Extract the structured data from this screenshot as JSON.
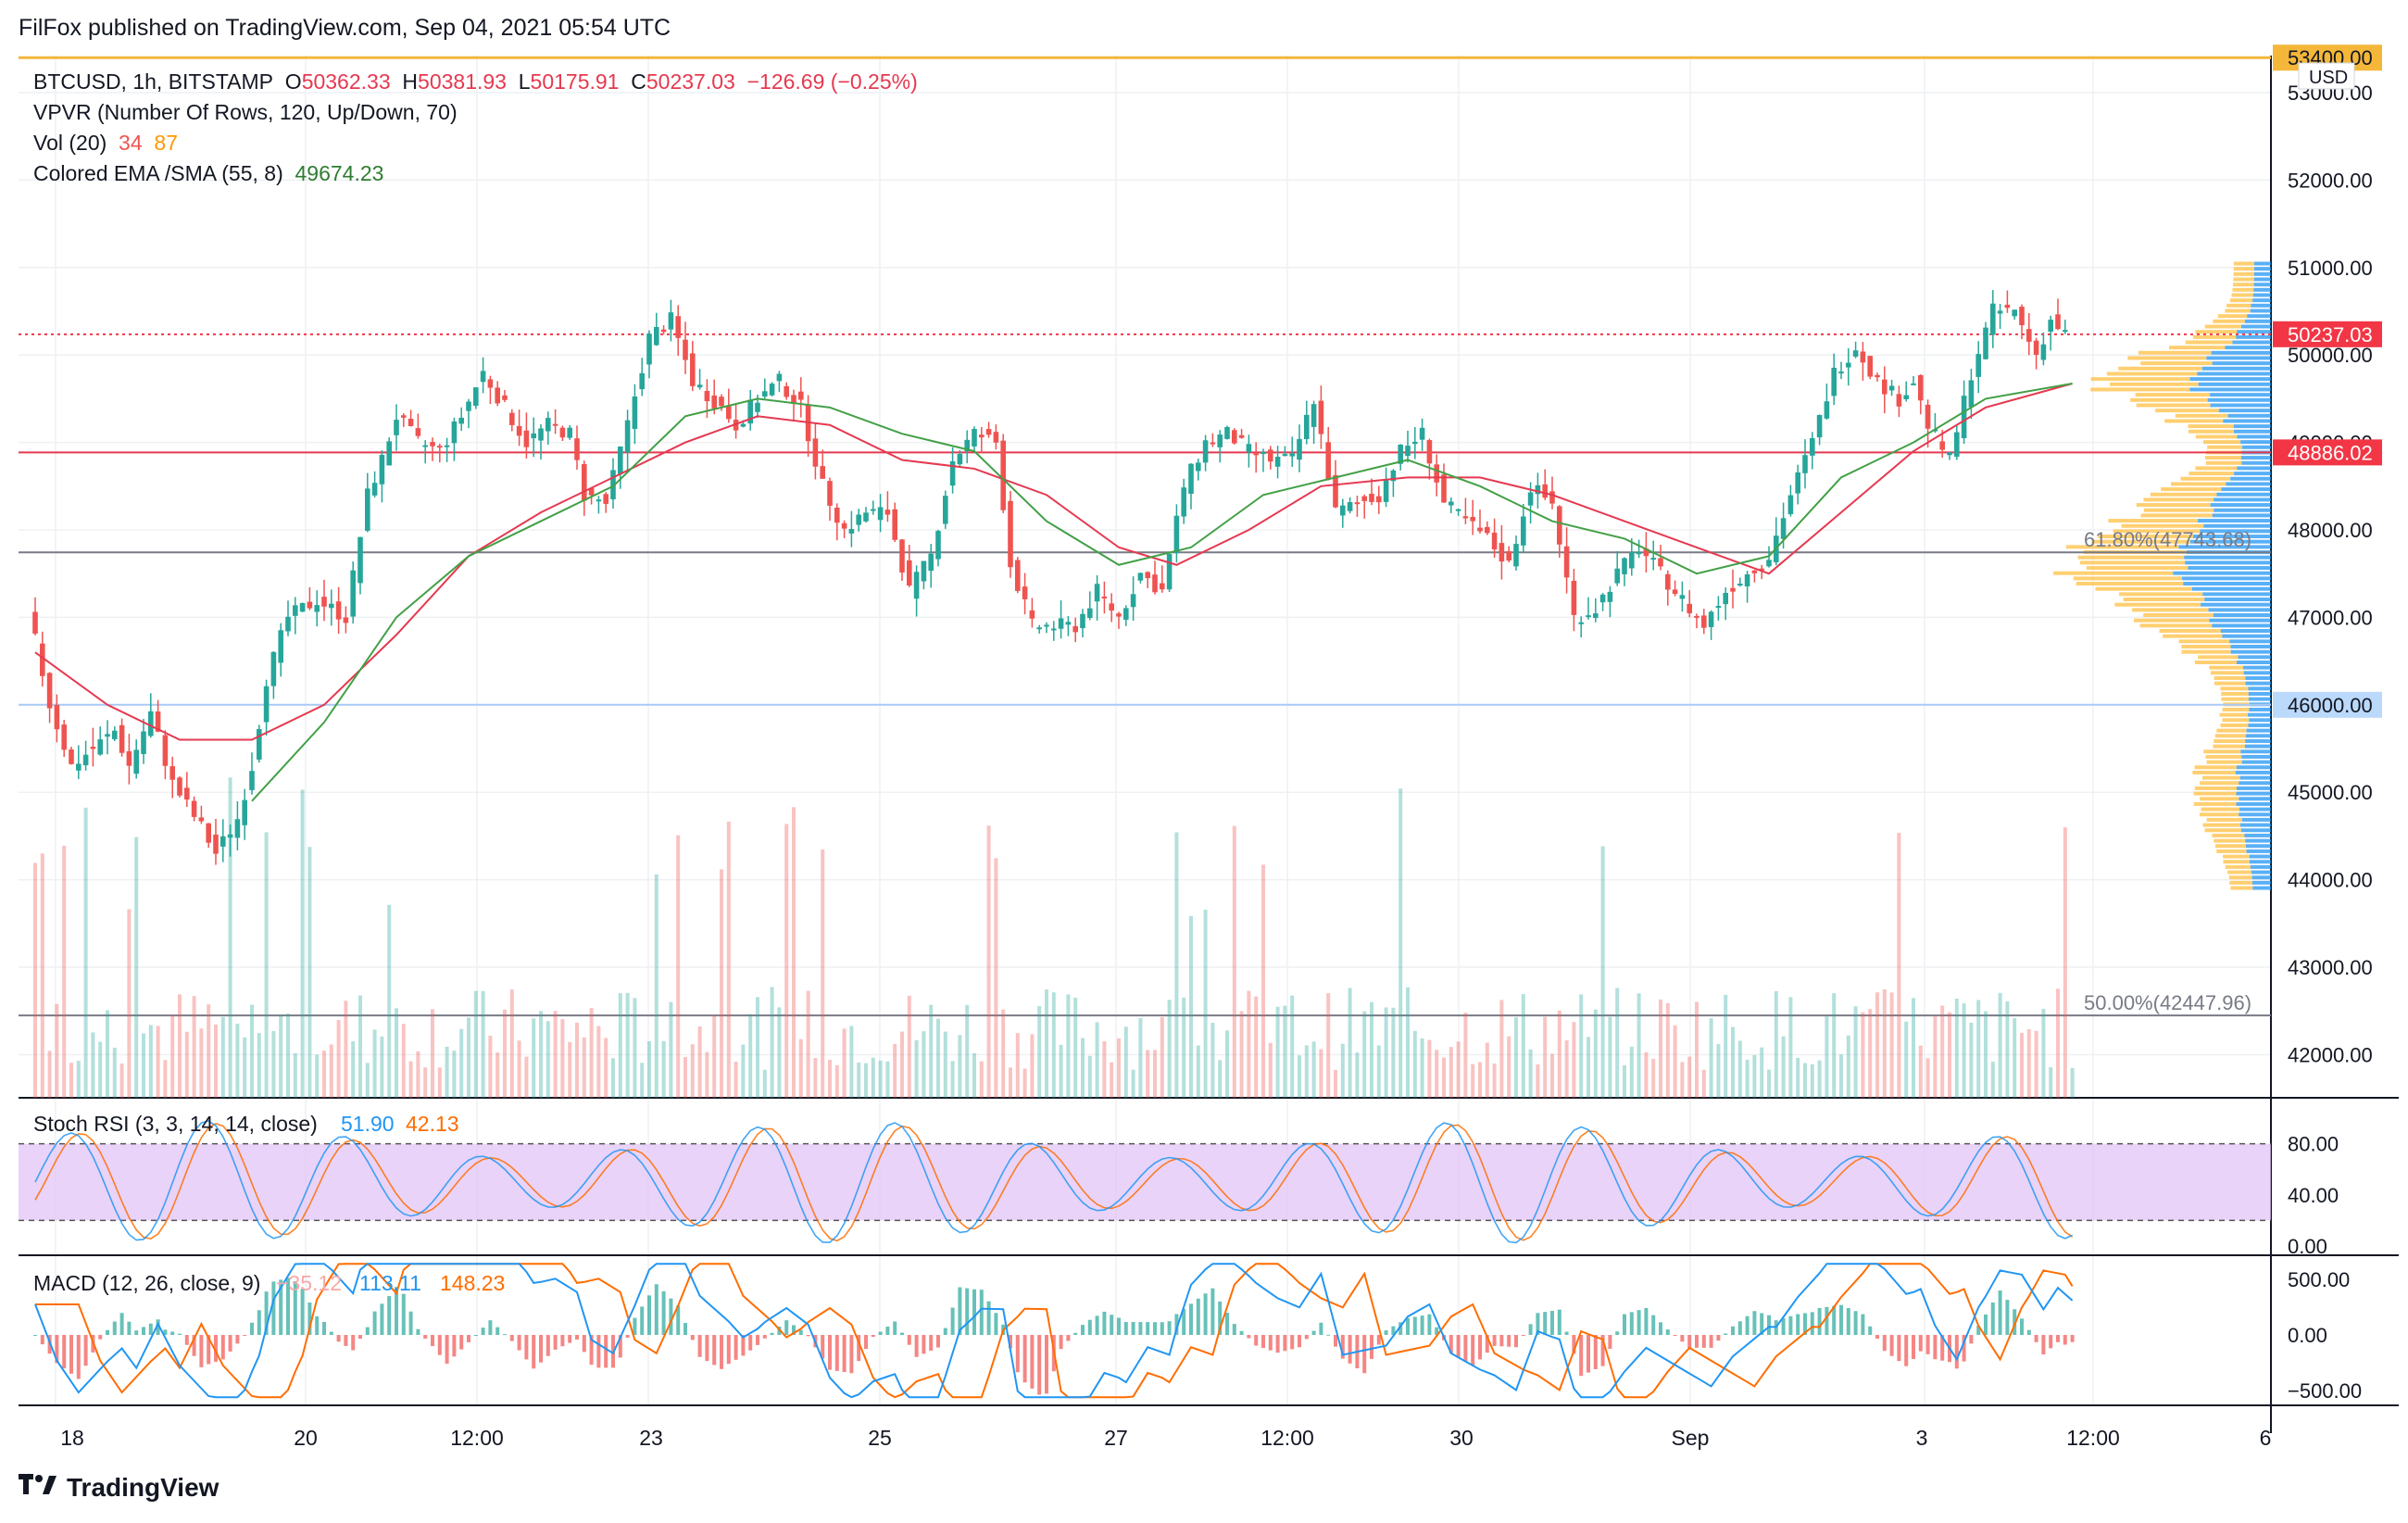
{
  "publisher": "FilFox published on TradingView.com, Sep 04, 2021 05:54 UTC",
  "brand": "TradingView",
  "colors": {
    "up": "#26a69a",
    "down": "#ef5350",
    "ema": "#e53950",
    "sma": "#43a047",
    "stoch_k": "#2196f3",
    "stoch_d": "#ff6d00",
    "macd": "#2196f3",
    "signal": "#ff6d00",
    "grid": "#eef0f3",
    "band": "#e1c4f5",
    "vp_up": "#2196f3",
    "vp_down": "#ffc34d"
  },
  "legend": {
    "symbol": "BTCUSD, 1h, BITSTAMP",
    "open_label": "O",
    "open": "50362.33",
    "high_label": "H",
    "high": "50381.93",
    "low_label": "L",
    "low": "50175.91",
    "close_label": "C",
    "close": "50237.03",
    "change": "−126.69 (−0.25%)",
    "vpvr": "VPVR (Number Of Rows, 120, Up/Down, 70)",
    "vol_label": "Vol (20)",
    "vol_value1": "34",
    "vol_value2": "87",
    "ema_label": "Colored EMA /SMA (55, 8)",
    "ema_value": "49674.23"
  },
  "price_axis": {
    "currency": "USD",
    "ticks": [
      "53000.00",
      "52000.00",
      "51000.00",
      "50000.00",
      "49000.00",
      "48000.00",
      "47000.00",
      "46000.00",
      "45000.00",
      "44000.00",
      "43000.00",
      "42000.00"
    ],
    "tick_values": [
      53000,
      52000,
      51000,
      50000,
      49000,
      48000,
      47000,
      46000,
      45000,
      44000,
      43000,
      42000
    ],
    "badges": [
      {
        "text": "53400.00",
        "value": 53400,
        "bg": "#f4b73a",
        "fg": "#131722"
      },
      {
        "text": "50237.03",
        "value": 50237.03,
        "bg": "#f23645",
        "fg": "#ffffff"
      },
      {
        "text": "48886.02",
        "value": 48886.02,
        "bg": "#f23645",
        "fg": "#ffffff"
      },
      {
        "text": "46000.00",
        "value": 46000,
        "bg": "#bbd9fb",
        "fg": "#131722"
      }
    ]
  },
  "horizontal_lines": [
    {
      "name": "resistance",
      "value": 53400,
      "color": "#f4b73a"
    },
    {
      "name": "support-red",
      "value": 48886.02,
      "color": "#e53950"
    },
    {
      "name": "support-blue",
      "value": 46000,
      "color": "#a9c9f5"
    },
    {
      "name": "fib-618",
      "value": 47743.68,
      "color": "#787b86"
    },
    {
      "name": "fib-50",
      "value": 42447.96,
      "color": "#787b86"
    },
    {
      "name": "last-price",
      "value": 50237.03,
      "color": "#f23645"
    }
  ],
  "fib_labels": [
    "61.80%(47743.68)",
    "50.00%(42447.96)"
  ],
  "time_axis": [
    "18",
    "20",
    "12:00",
    "23",
    "25",
    "27",
    "12:00",
    "30",
    "Sep",
    "3",
    "12:00",
    "6"
  ],
  "stoch": {
    "label": "Stoch RSI (3, 3, 14, 14, close)",
    "k": "51.90",
    "d": "42.13",
    "ticks": [
      "80.00",
      "40.00",
      "0.00"
    ],
    "tick_values": [
      80,
      40,
      0
    ],
    "upper": 80,
    "lower": 20
  },
  "macd": {
    "label": "MACD (12, 26, close, 9)",
    "hist": "−35.12",
    "macd": "113.11",
    "signal": "148.23",
    "ticks": [
      "500.00",
      "0.00",
      "−500.00"
    ],
    "tick_values": [
      500,
      0,
      -500
    ]
  },
  "chart_data": {
    "type": "candlestick",
    "symbol": "BTCUSD",
    "interval": "1h",
    "x_labels": [
      "18",
      "20",
      "12:00",
      "23",
      "25",
      "27",
      "12:00",
      "30",
      "Sep",
      "3",
      "12:00",
      "6"
    ],
    "ylim": [
      41500,
      53800
    ],
    "close_path": [
      {
        "t": 0,
        "price": 47100
      },
      {
        "t": 3,
        "price": 46000
      },
      {
        "t": 6,
        "price": 45300
      },
      {
        "t": 9,
        "price": 45500
      },
      {
        "t": 12,
        "price": 45700
      },
      {
        "t": 14,
        "price": 45300
      },
      {
        "t": 17,
        "price": 45900
      },
      {
        "t": 20,
        "price": 45100
      },
      {
        "t": 24,
        "price": 44600
      },
      {
        "t": 26,
        "price": 44300
      },
      {
        "t": 29,
        "price": 44700
      },
      {
        "t": 31,
        "price": 45300
      },
      {
        "t": 33,
        "price": 46300
      },
      {
        "t": 36,
        "price": 47000
      },
      {
        "t": 40,
        "price": 47200
      },
      {
        "t": 44,
        "price": 47000
      },
      {
        "t": 47,
        "price": 48400
      },
      {
        "t": 49,
        "price": 48800
      },
      {
        "t": 51,
        "price": 49300
      },
      {
        "t": 54,
        "price": 49000
      },
      {
        "t": 57,
        "price": 48900
      },
      {
        "t": 60,
        "price": 49300
      },
      {
        "t": 63,
        "price": 49800
      },
      {
        "t": 66,
        "price": 49400
      },
      {
        "t": 69,
        "price": 49000
      },
      {
        "t": 72,
        "price": 49200
      },
      {
        "t": 75,
        "price": 49100
      },
      {
        "t": 77,
        "price": 48400
      },
      {
        "t": 80,
        "price": 48300
      },
      {
        "t": 83,
        "price": 49200
      },
      {
        "t": 86,
        "price": 50200
      },
      {
        "t": 89,
        "price": 50400
      },
      {
        "t": 92,
        "price": 49700
      },
      {
        "t": 96,
        "price": 49400
      },
      {
        "t": 98,
        "price": 49200
      },
      {
        "t": 101,
        "price": 49500
      },
      {
        "t": 104,
        "price": 49700
      },
      {
        "t": 107,
        "price": 49400
      },
      {
        "t": 110,
        "price": 48500
      },
      {
        "t": 113,
        "price": 48000
      },
      {
        "t": 116,
        "price": 48200
      },
      {
        "t": 119,
        "price": 48200
      },
      {
        "t": 122,
        "price": 47300
      },
      {
        "t": 125,
        "price": 47700
      },
      {
        "t": 128,
        "price": 48800
      },
      {
        "t": 131,
        "price": 49100
      },
      {
        "t": 134,
        "price": 49000
      },
      {
        "t": 136,
        "price": 47600
      },
      {
        "t": 139,
        "price": 46900
      },
      {
        "t": 142,
        "price": 46900
      },
      {
        "t": 145,
        "price": 46900
      },
      {
        "t": 148,
        "price": 47300
      },
      {
        "t": 151,
        "price": 47000
      },
      {
        "t": 154,
        "price": 47500
      },
      {
        "t": 157,
        "price": 47300
      },
      {
        "t": 160,
        "price": 48500
      },
      {
        "t": 163,
        "price": 49000
      },
      {
        "t": 166,
        "price": 49100
      },
      {
        "t": 169,
        "price": 48900
      },
      {
        "t": 172,
        "price": 48800
      },
      {
        "t": 175,
        "price": 48800
      },
      {
        "t": 178,
        "price": 49500
      },
      {
        "t": 181,
        "price": 48200
      },
      {
        "t": 184,
        "price": 48300
      },
      {
        "t": 187,
        "price": 48400
      },
      {
        "t": 190,
        "price": 48900
      },
      {
        "t": 193,
        "price": 49100
      },
      {
        "t": 196,
        "price": 48300
      },
      {
        "t": 199,
        "price": 48100
      },
      {
        "t": 202,
        "price": 47900
      },
      {
        "t": 205,
        "price": 47600
      },
      {
        "t": 208,
        "price": 48500
      },
      {
        "t": 211,
        "price": 48300
      },
      {
        "t": 214,
        "price": 47000
      },
      {
        "t": 217,
        "price": 47100
      },
      {
        "t": 220,
        "price": 47500
      },
      {
        "t": 223,
        "price": 47800
      },
      {
        "t": 226,
        "price": 47500
      },
      {
        "t": 229,
        "price": 47200
      },
      {
        "t": 232,
        "price": 46900
      },
      {
        "t": 235,
        "price": 47300
      },
      {
        "t": 238,
        "price": 47500
      },
      {
        "t": 241,
        "price": 47700
      },
      {
        "t": 244,
        "price": 48400
      },
      {
        "t": 247,
        "price": 49000
      },
      {
        "t": 250,
        "price": 49800
      },
      {
        "t": 253,
        "price": 50100
      },
      {
        "t": 256,
        "price": 49700
      },
      {
        "t": 259,
        "price": 49500
      },
      {
        "t": 261,
        "price": 49700
      },
      {
        "t": 263,
        "price": 49200
      },
      {
        "t": 266,
        "price": 48800
      },
      {
        "t": 269,
        "price": 49800
      },
      {
        "t": 272,
        "price": 50500
      },
      {
        "t": 275,
        "price": 50500
      },
      {
        "t": 278,
        "price": 50000
      },
      {
        "t": 280,
        "price": 50400
      },
      {
        "t": 282,
        "price": 50237
      }
    ],
    "ema_path": [
      {
        "t": 0,
        "price": 46600
      },
      {
        "t": 10,
        "price": 46000
      },
      {
        "t": 20,
        "price": 45600
      },
      {
        "t": 30,
        "price": 45600
      },
      {
        "t": 40,
        "price": 46000
      },
      {
        "t": 50,
        "price": 46800
      },
      {
        "t": 60,
        "price": 47700
      },
      {
        "t": 70,
        "price": 48200
      },
      {
        "t": 80,
        "price": 48600
      },
      {
        "t": 90,
        "price": 49000
      },
      {
        "t": 100,
        "price": 49300
      },
      {
        "t": 110,
        "price": 49200
      },
      {
        "t": 120,
        "price": 48800
      },
      {
        "t": 130,
        "price": 48700
      },
      {
        "t": 140,
        "price": 48400
      },
      {
        "t": 150,
        "price": 47800
      },
      {
        "t": 158,
        "price": 47600
      },
      {
        "t": 168,
        "price": 48000
      },
      {
        "t": 178,
        "price": 48500
      },
      {
        "t": 190,
        "price": 48600
      },
      {
        "t": 200,
        "price": 48600
      },
      {
        "t": 210,
        "price": 48400
      },
      {
        "t": 220,
        "price": 48100
      },
      {
        "t": 230,
        "price": 47800
      },
      {
        "t": 240,
        "price": 47500
      },
      {
        "t": 250,
        "price": 48200
      },
      {
        "t": 260,
        "price": 48900
      },
      {
        "t": 270,
        "price": 49400
      },
      {
        "t": 282,
        "price": 49674
      }
    ],
    "sma_path": [
      {
        "t": 30,
        "price": 44900
      },
      {
        "t": 40,
        "price": 45800
      },
      {
        "t": 50,
        "price": 47000
      },
      {
        "t": 60,
        "price": 47700
      },
      {
        "t": 70,
        "price": 48100
      },
      {
        "t": 80,
        "price": 48500
      },
      {
        "t": 90,
        "price": 49300
      },
      {
        "t": 100,
        "price": 49500
      },
      {
        "t": 110,
        "price": 49400
      },
      {
        "t": 120,
        "price": 49100
      },
      {
        "t": 130,
        "price": 48900
      },
      {
        "t": 140,
        "price": 48100
      },
      {
        "t": 150,
        "price": 47600
      },
      {
        "t": 160,
        "price": 47800
      },
      {
        "t": 170,
        "price": 48400
      },
      {
        "t": 180,
        "price": 48600
      },
      {
        "t": 190,
        "price": 48800
      },
      {
        "t": 200,
        "price": 48500
      },
      {
        "t": 210,
        "price": 48100
      },
      {
        "t": 220,
        "price": 47900
      },
      {
        "t": 230,
        "price": 47500
      },
      {
        "t": 240,
        "price": 47700
      },
      {
        "t": 250,
        "price": 48600
      },
      {
        "t": 260,
        "price": 49000
      },
      {
        "t": 270,
        "price": 49500
      },
      {
        "t": 282,
        "price": 49674
      }
    ]
  }
}
